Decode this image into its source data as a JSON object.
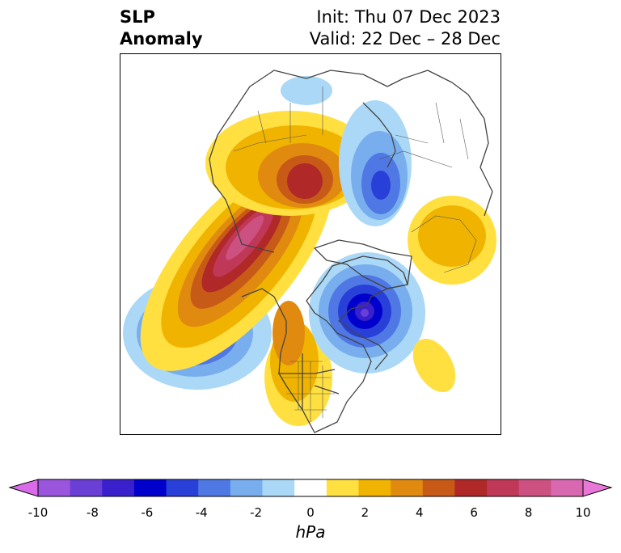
{
  "title": {
    "left_line1": "SLP",
    "left_line2": "Anomaly",
    "init": "Init: Thu 07 Dec 2023",
    "valid": "Valid: 22 Dec – 28 Dec"
  },
  "colorbar": {
    "unit_label": "hPa",
    "tick_labels": [
      "-10",
      "-8",
      "-6",
      "-4",
      "-2",
      "0",
      "2",
      "4",
      "6",
      "8",
      "10"
    ],
    "colors": [
      "#d96be8",
      "#9a55dc",
      "#6a3fd6",
      "#3a20cc",
      "#0000cc",
      "#2840d8",
      "#4f78e4",
      "#78aeee",
      "#aad8f6",
      "#ffffff",
      "#ffe040",
      "#f0b400",
      "#e08a10",
      "#c85a18",
      "#b02828",
      "#c03858",
      "#cc5080",
      "#d868b0",
      "#e878d8"
    ],
    "extend": "both"
  },
  "map": {
    "projection": "north-polar stereographic",
    "field": "sea level pressure anomaly",
    "features": [
      "coastlines",
      "country borders",
      "US state borders"
    ]
  }
}
